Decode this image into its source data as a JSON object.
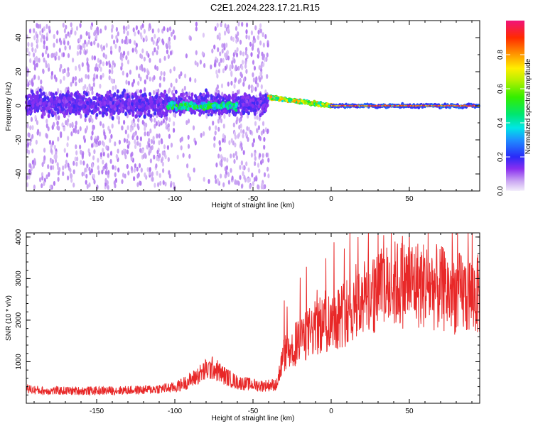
{
  "title": "C2E1.2024.223.17.21.R15",
  "chart_data": [
    {
      "type": "heatmap",
      "xlabel": "Height of straight line (km)",
      "ylabel": "Frequency (Hz)",
      "xlim": [
        -195,
        95
      ],
      "ylim": [
        -50,
        50
      ],
      "xticks": [
        "-150",
        "-100",
        "-50",
        "0",
        "50"
      ],
      "yticks": [
        "-40",
        "-20",
        "0",
        "20",
        "40"
      ],
      "colorbar": {
        "label": "Normalized spectral amplitude",
        "ticks": [
          "0.0",
          "0.2",
          "0.4",
          "0.6",
          "0.8"
        ],
        "range": [
          0,
          1
        ]
      },
      "regions": [
        {
          "x": [
            -195,
            -40
          ],
          "freq_spread": 48,
          "amplitude": 0.1
        },
        {
          "x": [
            -105,
            -60
          ],
          "freq_spread": 6,
          "amplitude": 0.45
        },
        {
          "x": [
            -40,
            0
          ],
          "freq_center": [
            5,
            0
          ],
          "amplitude": 0.75
        },
        {
          "x": [
            0,
            95
          ],
          "freq_center": 0,
          "amplitude": 0.95
        }
      ],
      "grid": false
    },
    {
      "type": "line",
      "xlabel": "Height of straight line (km)",
      "ylabel": "SNR (10 * v/v)",
      "xlim": [
        -195,
        95
      ],
      "ylim": [
        0,
        4100
      ],
      "xticks": [
        "-150",
        "-100",
        "-50",
        "0",
        "50"
      ],
      "yticks": [
        "1000",
        "2000",
        "3000",
        "4000"
      ],
      "color": "#e82828",
      "envelope": [
        {
          "x": -195,
          "y": 350
        },
        {
          "x": -185,
          "y": 300
        },
        {
          "x": -150,
          "y": 300
        },
        {
          "x": -120,
          "y": 320
        },
        {
          "x": -100,
          "y": 380
        },
        {
          "x": -90,
          "y": 550
        },
        {
          "x": -80,
          "y": 800
        },
        {
          "x": -75,
          "y": 850
        },
        {
          "x": -70,
          "y": 700
        },
        {
          "x": -60,
          "y": 500
        },
        {
          "x": -45,
          "y": 420
        },
        {
          "x": -35,
          "y": 450
        },
        {
          "x": -30,
          "y": 1200
        },
        {
          "x": -20,
          "y": 1500
        },
        {
          "x": -10,
          "y": 1800
        },
        {
          "x": 0,
          "y": 2000
        },
        {
          "x": 10,
          "y": 2200
        },
        {
          "x": 20,
          "y": 2500
        },
        {
          "x": 30,
          "y": 2700
        },
        {
          "x": 40,
          "y": 2850
        },
        {
          "x": 50,
          "y": 2900
        },
        {
          "x": 60,
          "y": 2850
        },
        {
          "x": 70,
          "y": 2750
        },
        {
          "x": 80,
          "y": 2650
        },
        {
          "x": 95,
          "y": 2600
        }
      ],
      "grid": false
    }
  ]
}
